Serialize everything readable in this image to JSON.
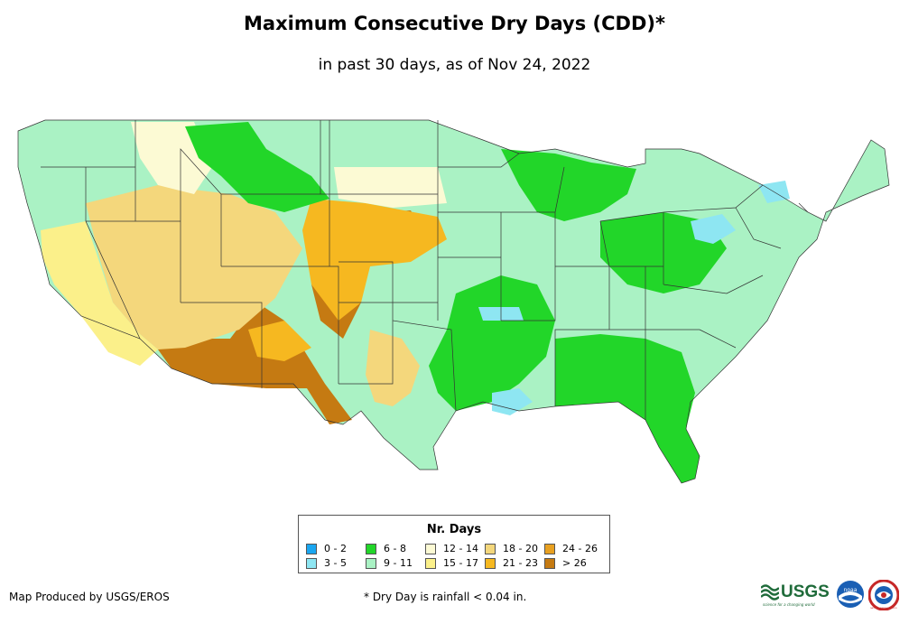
{
  "title": "Maximum Consecutive Dry Days (CDD)*",
  "subtitle": "in past 30 days, as of Nov 24, 2022",
  "legend": {
    "title": "Nr. Days",
    "items": [
      {
        "label": "0 - 2",
        "color": "#1aa6f0"
      },
      {
        "label": "3 - 5",
        "color": "#8ee6f2"
      },
      {
        "label": "6 - 8",
        "color": "#22d629"
      },
      {
        "label": "9 - 11",
        "color": "#aaf2c4"
      },
      {
        "label": "12 - 14",
        "color": "#fcfad4"
      },
      {
        "label": "15 - 17",
        "color": "#fbf08a"
      },
      {
        "label": "18 - 20",
        "color": "#f4d77c"
      },
      {
        "label": "21 - 23",
        "color": "#f6b820"
      },
      {
        "label": "24 - 26",
        "color": "#e8a020"
      },
      {
        "label": "> 26",
        "color": "#c57a12"
      }
    ]
  },
  "credit": "Map Produced by USGS/EROS",
  "footnote": "* Dry Day is rainfall < 0.04 in.",
  "logos": {
    "usgs": "USGS",
    "usgs_tagline": "science for a changing world",
    "noaa": "noaa",
    "nws": "NATIONAL WEATHER SERVICE"
  },
  "map": {
    "region": "Contiguous United States",
    "color_key": {
      "very_dry": "#c57a12",
      "dry": "#f6b820",
      "moderate_dry": "#f4d77c",
      "light": "#fbf08a",
      "pale": "#fcfad4",
      "mint": "#aaf2c4",
      "green": "#22d629",
      "cyan": "#8ee6f2"
    }
  }
}
